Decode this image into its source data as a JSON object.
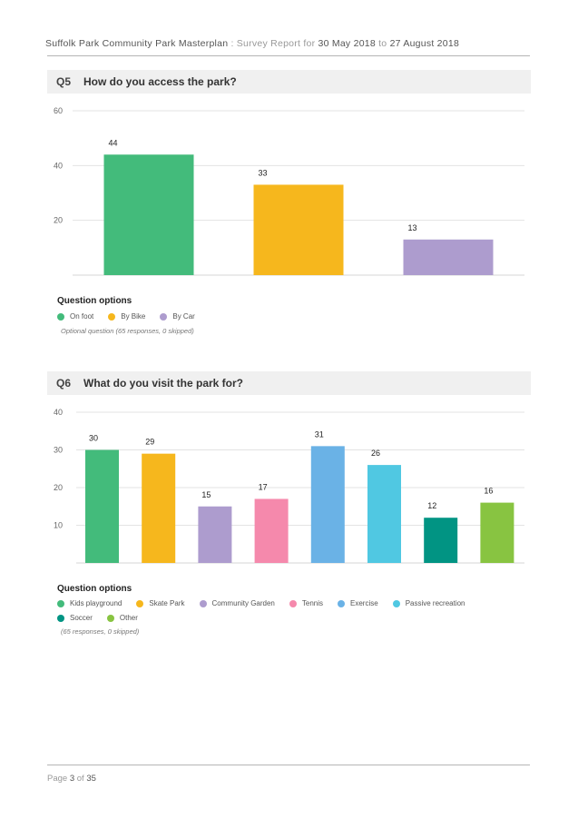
{
  "header": {
    "prefix": "Suffolk Park Community Park Masterplan",
    "mid": " : Survey Report for ",
    "start": "30 May 2018",
    "to": " to ",
    "end": "27 August 2018"
  },
  "footer": {
    "label": "Page ",
    "page": "3",
    "of": " of ",
    "total": "35"
  },
  "q5": {
    "num": "Q5",
    "title": "How do you access the park?",
    "options_title": "Question options",
    "note": "Optional question (65 responses, 0 skipped)"
  },
  "q6": {
    "num": "Q6",
    "title": "What do you visit the park for?",
    "options_title": "Question options",
    "note": "(65 responses, 0 skipped)"
  },
  "chart_data": [
    {
      "type": "bar",
      "categories": [
        "On foot",
        "By Bike",
        "By Car"
      ],
      "values": [
        44,
        33,
        13
      ],
      "colors": [
        "#43bb7b",
        "#f6b71d",
        "#ad9cce"
      ],
      "ylim": [
        0,
        60
      ],
      "yticks": [
        20,
        40,
        60
      ],
      "grid": true,
      "legend_position": "bottom-left"
    },
    {
      "type": "bar",
      "categories": [
        "Kids playground",
        "Skate Park",
        "Community Garden",
        "Tennis",
        "Exercise",
        "Passive recreation",
        "Soccer",
        "Other"
      ],
      "values": [
        30,
        29,
        15,
        17,
        31,
        26,
        12,
        16
      ],
      "colors": [
        "#43bb7b",
        "#f6b71d",
        "#ad9cce",
        "#f589ac",
        "#6ab2e6",
        "#50c8e2",
        "#019483",
        "#88c441"
      ],
      "ylim": [
        0,
        40
      ],
      "yticks": [
        10,
        20,
        30,
        40
      ],
      "grid": true,
      "legend_position": "bottom-left"
    }
  ]
}
